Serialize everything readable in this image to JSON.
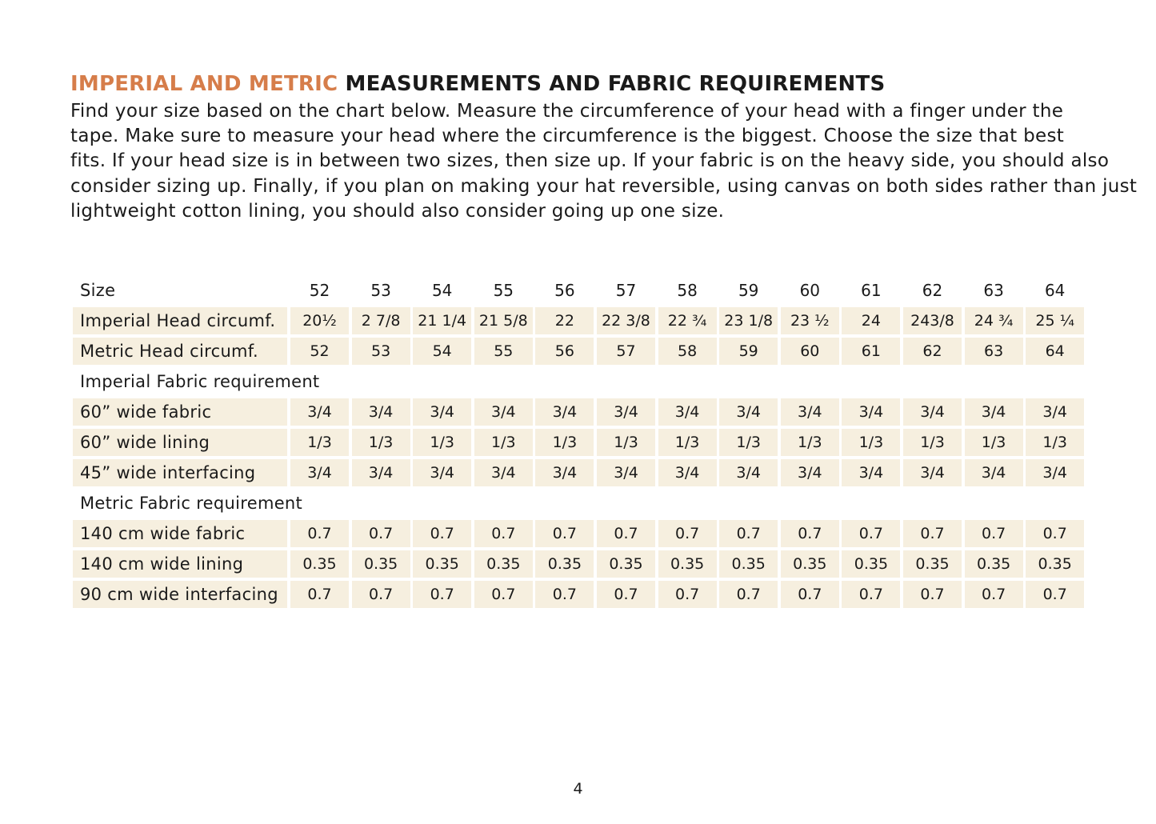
{
  "title": {
    "accent": "IMPERIAL AND METRIC",
    "rest": " MEASUREMENTS AND FABRIC REQUIREMENTS"
  },
  "intro_lines": [
    "Find your size based on the chart below. Measure the circumference of your head with a finger under the",
    "tape. Make sure to measure your head where the circumference is the biggest.  Choose the size that best",
    "fits. If your head size is in between two sizes, then size up. If your fabric is on the heavy side, you should also",
    "consider sizing up. Finally, if you plan on making your hat reversible, using canvas on both sides rather than just",
    "lightweight cotton lining, you should also consider going up one size."
  ],
  "table": {
    "rows": [
      {
        "type": "header",
        "label": "Size",
        "values": [
          "52",
          "53",
          "54",
          "55",
          "56",
          "57",
          "58",
          "59",
          "60",
          "61",
          "62",
          "63",
          "64"
        ]
      },
      {
        "type": "data",
        "label": "Imperial Head circumf.",
        "values": [
          "20½",
          "2 7/8",
          "21 1/4",
          "21 5/8",
          "22",
          "22 3/8",
          "22 ¾",
          "23 1/8",
          "23 ½",
          "24",
          "243/8",
          "24 ¾",
          "25 ¼"
        ]
      },
      {
        "type": "data",
        "label": "Metric Head circumf.",
        "values": [
          "52",
          "53",
          "54",
          "55",
          "56",
          "57",
          "58",
          "59",
          "60",
          "61",
          "62",
          "63",
          "64"
        ]
      },
      {
        "type": "section",
        "label": "Imperial Fabric requirement",
        "values": []
      },
      {
        "type": "data",
        "label": "60”  wide fabric",
        "values": [
          "3/4",
          "3/4",
          "3/4",
          "3/4",
          "3/4",
          "3/4",
          "3/4",
          "3/4",
          "3/4",
          "3/4",
          "3/4",
          "3/4",
          "3/4"
        ]
      },
      {
        "type": "data",
        "label": "60”  wide lining",
        "values": [
          "1/3",
          "1/3",
          "1/3",
          "1/3",
          "1/3",
          "1/3",
          "1/3",
          "1/3",
          "1/3",
          "1/3",
          "1/3",
          "1/3",
          "1/3"
        ]
      },
      {
        "type": "data",
        "label": "45” wide interfacing",
        "values": [
          "3/4",
          "3/4",
          "3/4",
          "3/4",
          "3/4",
          "3/4",
          "3/4",
          "3/4",
          "3/4",
          "3/4",
          "3/4",
          "3/4",
          "3/4"
        ]
      },
      {
        "type": "section",
        "label": "Metric Fabric requirement",
        "values": []
      },
      {
        "type": "data",
        "label": "140 cm wide fabric",
        "values": [
          "0.7",
          "0.7",
          "0.7",
          "0.7",
          "0.7",
          "0.7",
          "0.7",
          "0.7",
          "0.7",
          "0.7",
          "0.7",
          "0.7",
          "0.7"
        ]
      },
      {
        "type": "data",
        "label": "140 cm wide lining",
        "values": [
          "0.35",
          "0.35",
          "0.35",
          "0.35",
          "0.35",
          "0.35",
          "0.35",
          "0.35",
          "0.35",
          "0.35",
          "0.35",
          "0.35",
          "0.35"
        ]
      },
      {
        "type": "data",
        "label": "90 cm wide interfacing",
        "values": [
          "0.7",
          "0.7",
          "0.7",
          "0.7",
          "0.7",
          "0.7",
          "0.7",
          "0.7",
          "0.7",
          "0.7",
          "0.7",
          "0.7",
          "0.7"
        ]
      }
    ]
  },
  "page_number": "4",
  "colors": {
    "accent": "#d67d4a",
    "cell_background": "#f6efdf",
    "text": "#1a1a1a"
  }
}
